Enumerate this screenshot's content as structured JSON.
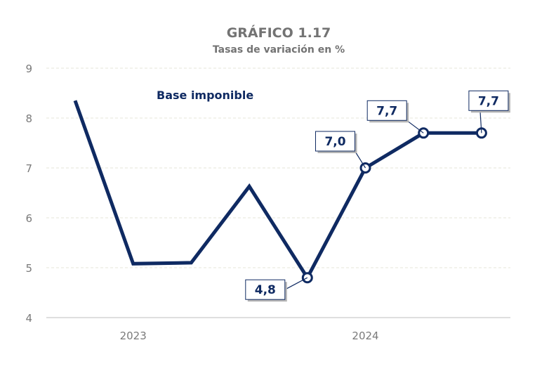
{
  "chart_data": {
    "type": "line",
    "title": "GRÁFICO 1.17",
    "subtitle": "Tasas de variación en %",
    "series_label": "Base imponible",
    "xlabel": "",
    "ylabel": "",
    "ylim": [
      4,
      9
    ],
    "yticks": [
      4,
      5,
      6,
      7,
      8,
      9
    ],
    "x_tick_labels": [
      {
        "index": 1,
        "label": "2023"
      },
      {
        "index": 5,
        "label": "2024"
      }
    ],
    "grid": true,
    "line_color": "#0f2a62",
    "grid_color": "#e6e6d8",
    "series": [
      {
        "values": [
          8.35,
          5.08,
          5.1,
          6.63,
          4.8,
          7.0,
          7.7,
          7.7
        ],
        "markers": [
          false,
          false,
          false,
          false,
          true,
          true,
          true,
          true
        ],
        "data_labels": [
          null,
          null,
          null,
          null,
          "4,8",
          "7,0",
          "7,7",
          "7,7"
        ]
      }
    ]
  }
}
